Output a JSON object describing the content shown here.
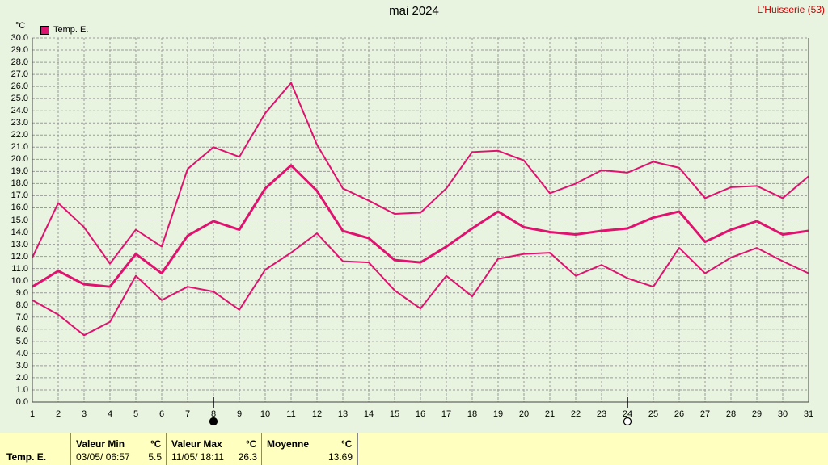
{
  "header": {
    "title": "mai 2024",
    "station": "L'Huisserie (53)",
    "unit": "°C"
  },
  "legend": {
    "label": "Temp. E.",
    "color": "#e0126f"
  },
  "moon_phases": [
    {
      "day": 8,
      "phase": "new-moon"
    },
    {
      "day": 24,
      "phase": "full-moon"
    }
  ],
  "chart_data": {
    "type": "line",
    "title": "mai 2024",
    "ylabel": "°C",
    "ylim": [
      0,
      30
    ],
    "yticks": [
      "0.0",
      "1.0",
      "2.0",
      "3.0",
      "4.0",
      "5.0",
      "6.0",
      "7.0",
      "8.0",
      "9.0",
      "10.0",
      "11.0",
      "12.0",
      "13.0",
      "14.0",
      "15.0",
      "16.0",
      "17.0",
      "18.0",
      "19.0",
      "20.0",
      "21.0",
      "22.0",
      "23.0",
      "24.0",
      "25.0",
      "26.0",
      "27.0",
      "28.0",
      "29.0",
      "30.0"
    ],
    "x": [
      1,
      2,
      3,
      4,
      5,
      6,
      7,
      8,
      9,
      10,
      11,
      12,
      13,
      14,
      15,
      16,
      17,
      18,
      19,
      20,
      21,
      22,
      23,
      24,
      25,
      26,
      27,
      28,
      29,
      30,
      31
    ],
    "grid": true,
    "legend": "top-left",
    "series": [
      {
        "name": "Temp. E.",
        "stat": "max",
        "color": "#e0126f",
        "values": [
          11.9,
          16.4,
          14.4,
          11.4,
          14.2,
          12.8,
          19.2,
          21.0,
          20.2,
          23.8,
          26.3,
          21.2,
          17.6,
          16.6,
          15.5,
          15.6,
          17.6,
          20.6,
          20.7,
          19.9,
          17.2,
          18.0,
          19.1,
          18.9,
          19.8,
          19.3,
          16.8,
          17.7,
          17.8,
          16.8,
          18.6
        ]
      },
      {
        "name": "Temp. E.",
        "stat": "mean",
        "color": "#e0126f",
        "values": [
          9.5,
          10.8,
          9.7,
          9.5,
          12.2,
          10.6,
          13.7,
          14.9,
          14.2,
          17.6,
          19.5,
          17.4,
          14.1,
          13.5,
          11.7,
          11.5,
          12.8,
          14.3,
          15.7,
          14.4,
          14.0,
          13.8,
          14.1,
          14.3,
          15.2,
          15.7,
          13.2,
          14.2,
          14.9,
          13.8,
          14.1
        ]
      },
      {
        "name": "Temp. E.",
        "stat": "min",
        "color": "#e0126f",
        "values": [
          8.4,
          7.2,
          5.5,
          6.6,
          10.4,
          8.4,
          9.5,
          9.1,
          7.6,
          10.9,
          12.3,
          13.9,
          11.6,
          11.5,
          9.2,
          7.7,
          10.4,
          8.7,
          11.8,
          12.2,
          12.3,
          10.4,
          11.3,
          10.2,
          9.5,
          12.7,
          10.6,
          11.9,
          12.7,
          11.6,
          10.6
        ]
      }
    ]
  },
  "stats": {
    "row_label": "Temp. E.",
    "min": {
      "label": "Valeur Min",
      "unit": "°C",
      "date": "03/05/  06:57",
      "value": "5.5"
    },
    "max": {
      "label": "Valeur Max",
      "unit": "°C",
      "date": "11/05/  18:11",
      "value": "26.3"
    },
    "avg": {
      "label": "Moyenne",
      "unit": "°C",
      "value": "13.69"
    }
  }
}
